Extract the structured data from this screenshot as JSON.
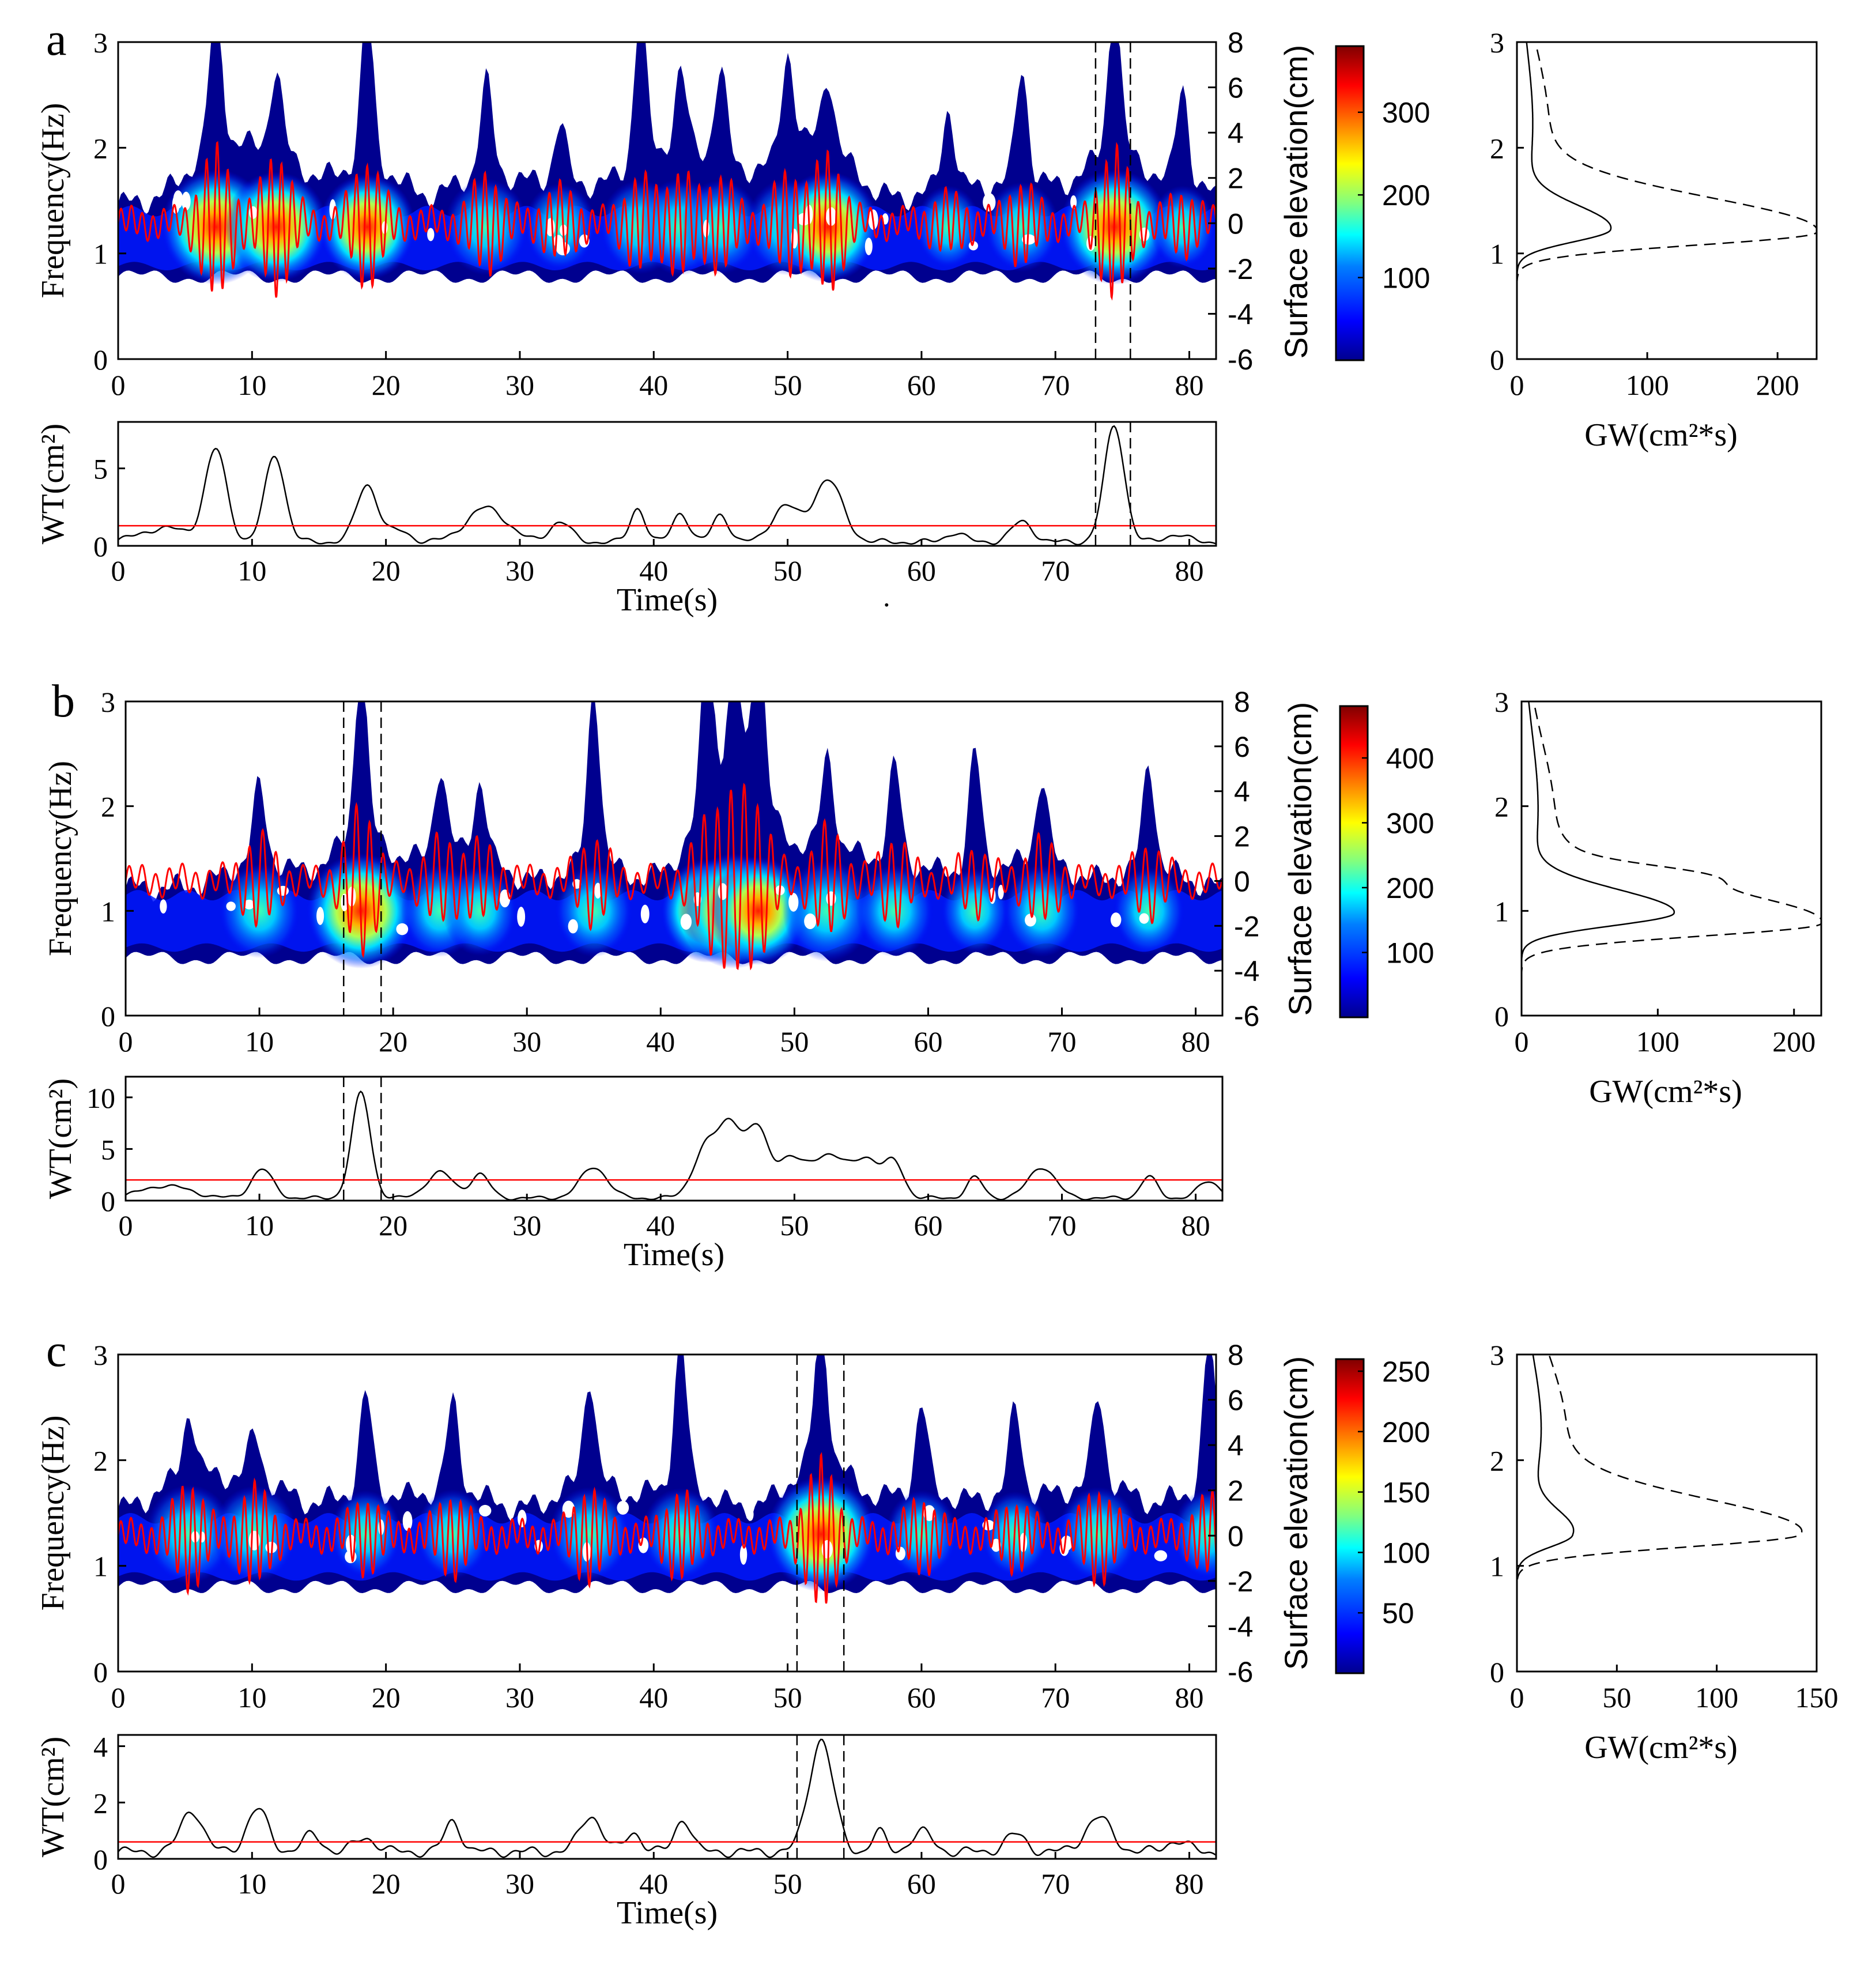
{
  "chart_data": [
    {
      "panel": "a",
      "type": "heatmap",
      "title": "a",
      "xlabel": "Time(s)",
      "ylabel": "Frequency(Hz)",
      "y2label": "Surface elevation(cm)",
      "xlim": [
        0,
        82
      ],
      "ylim": [
        0,
        3
      ],
      "y2lim": [
        -6,
        8
      ],
      "x_ticks": [
        0,
        10,
        20,
        30,
        40,
        50,
        60,
        70,
        80
      ],
      "y_ticks": [
        0,
        1,
        2,
        3
      ],
      "y2_ticks": [
        -6,
        -4,
        -2,
        0,
        2,
        4,
        6,
        8
      ],
      "colorbar_max": 380,
      "colorbar_ticks": [
        100,
        200,
        300
      ],
      "carrier_frequency": 1.25,
      "low_edge": 0.78,
      "groups": [
        {
          "t": 7.3,
          "amp": 1.0,
          "spike": 3.0
        },
        {
          "t": 11.8,
          "amp": 0.9,
          "spike": 2.3
        },
        {
          "t": 18.6,
          "amp": 0.8,
          "spike": 3.0
        },
        {
          "t": 27.5,
          "amp": 0.6,
          "spike": 2.4
        },
        {
          "t": 33.0,
          "amp": 0.4,
          "spike": 2.1
        },
        {
          "t": 39.0,
          "amp": 0.55,
          "spike": 3.0
        },
        {
          "t": 42.0,
          "amp": 0.6,
          "spike": 2.3
        },
        {
          "t": 45.0,
          "amp": 0.55,
          "spike": 2.4
        },
        {
          "t": 50.0,
          "amp": 0.6,
          "spike": 2.5
        },
        {
          "t": 53.0,
          "amp": 0.9,
          "spike": 2.2
        },
        {
          "t": 62.0,
          "amp": 0.3,
          "spike": 2.3
        },
        {
          "t": 67.5,
          "amp": 0.45,
          "spike": 2.6
        },
        {
          "t": 74.4,
          "amp": 1.0,
          "spike": 3.0
        },
        {
          "t": 79.5,
          "amp": 0.3,
          "spike": 2.5
        }
      ],
      "event_window": [
        73.0,
        75.6
      ],
      "wt": {
        "ylabel": "WT(cm²)",
        "xlabel": "Time(s)",
        "ylim": [
          0,
          8
        ],
        "y_ticks": [
          0,
          5
        ],
        "threshold": 1.3,
        "peaks": [
          {
            "t": 3.5,
            "v": 0.9,
            "w": 1.8
          },
          {
            "t": 7.3,
            "v": 5.9,
            "w": 0.8
          },
          {
            "t": 11.7,
            "v": 5.6,
            "w": 0.75
          },
          {
            "t": 18.6,
            "v": 3.7,
            "w": 0.8
          },
          {
            "t": 21.0,
            "v": 0.7,
            "w": 0.8
          },
          {
            "t": 27.5,
            "v": 2.2,
            "w": 1.5
          },
          {
            "t": 33.0,
            "v": 1.3,
            "w": 0.8
          },
          {
            "t": 38.8,
            "v": 2.2,
            "w": 0.55
          },
          {
            "t": 42.0,
            "v": 1.9,
            "w": 0.6
          },
          {
            "t": 45.0,
            "v": 1.8,
            "w": 0.6
          },
          {
            "t": 49.8,
            "v": 2.3,
            "w": 1.0
          },
          {
            "t": 53.0,
            "v": 4.0,
            "w": 1.1
          },
          {
            "t": 62.5,
            "v": 0.6,
            "w": 0.7
          },
          {
            "t": 67.5,
            "v": 1.3,
            "w": 0.8
          },
          {
            "t": 74.4,
            "v": 7.5,
            "w": 0.75
          },
          {
            "t": 79.0,
            "v": 0.5,
            "w": 0.8
          }
        ]
      },
      "spectrum": {
        "type": "line",
        "xlabel": "GW(cm²*s)",
        "xlim": [
          0,
          230
        ],
        "x_ticks": [
          0,
          100,
          200
        ],
        "ylim": [
          0,
          3
        ],
        "y_ticks": [
          0,
          1,
          2,
          3
        ],
        "solid": {
          "peak_f": 1.23,
          "peak_v": 72
        },
        "dashed": {
          "peak_f": 1.2,
          "peak_v": 230
        },
        "secondary": null
      }
    },
    {
      "panel": "b",
      "type": "heatmap",
      "title": "b",
      "xlabel": "Time(s)",
      "ylabel": "Frequency(Hz)",
      "y2label": "Surface elevation(cm)",
      "xlim": [
        0,
        82
      ],
      "ylim": [
        0,
        3
      ],
      "y2lim": [
        -6,
        8
      ],
      "x_ticks": [
        0,
        10,
        20,
        30,
        40,
        50,
        60,
        70,
        80
      ],
      "y_ticks": [
        0,
        1,
        2,
        3
      ],
      "y2_ticks": [
        -6,
        -4,
        -2,
        0,
        2,
        4,
        6,
        8
      ],
      "colorbar_max": 480,
      "colorbar_ticks": [
        100,
        200,
        300,
        400
      ],
      "carrier_frequency": 1.0,
      "low_edge": 0.55,
      "groups": [
        {
          "t": 10.0,
          "amp": 0.55,
          "spike": 2.0
        },
        {
          "t": 17.6,
          "amp": 1.0,
          "spike": 3.0
        },
        {
          "t": 23.5,
          "amp": 0.5,
          "spike": 2.1
        },
        {
          "t": 26.5,
          "amp": 0.45,
          "spike": 2.0
        },
        {
          "t": 35.0,
          "amp": 0.5,
          "spike": 3.0
        },
        {
          "t": 43.5,
          "amp": 0.75,
          "spike": 3.0
        },
        {
          "t": 45.5,
          "amp": 1.0,
          "spike": 2.7
        },
        {
          "t": 47.3,
          "amp": 0.85,
          "spike": 3.0
        },
        {
          "t": 52.5,
          "amp": 0.7,
          "spike": 2.2
        },
        {
          "t": 57.5,
          "amp": 0.5,
          "spike": 2.2
        },
        {
          "t": 63.5,
          "amp": 0.35,
          "spike": 2.4
        },
        {
          "t": 68.5,
          "amp": 0.5,
          "spike": 2.1
        },
        {
          "t": 76.5,
          "amp": 0.4,
          "spike": 2.3
        }
      ],
      "event_window": [
        16.3,
        19.1
      ],
      "wt": {
        "ylabel": "WT(cm²)",
        "xlabel": "Time(s)",
        "ylim": [
          0,
          12
        ],
        "y_ticks": [
          0,
          5,
          10
        ],
        "threshold": 2.0,
        "peaks": [
          {
            "t": 3.0,
            "v": 1.2,
            "w": 1.8
          },
          {
            "t": 10.2,
            "v": 2.8,
            "w": 0.8
          },
          {
            "t": 17.6,
            "v": 10.2,
            "w": 0.7
          },
          {
            "t": 23.5,
            "v": 2.5,
            "w": 1.0
          },
          {
            "t": 26.5,
            "v": 2.3,
            "w": 0.7
          },
          {
            "t": 35.0,
            "v": 3.0,
            "w": 1.0
          },
          {
            "t": 43.5,
            "v": 5.2,
            "w": 1.0
          },
          {
            "t": 45.3,
            "v": 6.3,
            "w": 0.8
          },
          {
            "t": 47.2,
            "v": 6.5,
            "w": 0.8
          },
          {
            "t": 49.5,
            "v": 3.5,
            "w": 1.0
          },
          {
            "t": 52.5,
            "v": 4.2,
            "w": 1.4
          },
          {
            "t": 55.5,
            "v": 3.5,
            "w": 1.0
          },
          {
            "t": 57.5,
            "v": 3.2,
            "w": 0.7
          },
          {
            "t": 63.5,
            "v": 2.0,
            "w": 0.6
          },
          {
            "t": 68.5,
            "v": 3.0,
            "w": 1.0
          },
          {
            "t": 76.5,
            "v": 2.1,
            "w": 0.6
          },
          {
            "t": 81.0,
            "v": 1.6,
            "w": 0.8
          }
        ]
      },
      "spectrum": {
        "type": "line",
        "xlabel": "GW(cm²*s)",
        "xlim": [
          0,
          220
        ],
        "x_ticks": [
          0,
          100,
          200
        ],
        "ylim": [
          0,
          3
        ],
        "y_ticks": [
          0,
          1,
          2,
          3
        ],
        "solid": {
          "peak_f": 0.98,
          "peak_v": 112
        },
        "dashed": {
          "peak_f": 0.88,
          "peak_v": 220
        },
        "secondary": {
          "f": 1.35,
          "v": 130,
          "w": 0.09
        }
      }
    },
    {
      "panel": "c",
      "type": "heatmap",
      "title": "c",
      "xlabel": "Time(s)",
      "ylabel": "Frequency(Hz)",
      "y2label": "Surface elevation(cm)",
      "xlim": [
        0,
        82
      ],
      "ylim": [
        0,
        3
      ],
      "y2lim": [
        -6,
        8
      ],
      "x_ticks": [
        0,
        10,
        20,
        30,
        40,
        50,
        60,
        70,
        80
      ],
      "y_ticks": [
        0,
        1,
        2,
        3
      ],
      "y2_ticks": [
        -6,
        -4,
        -2,
        0,
        2,
        4,
        6,
        8
      ],
      "colorbar_max": 260,
      "colorbar_ticks": [
        50,
        100,
        150,
        200,
        250
      ],
      "carrier_frequency": 1.3,
      "low_edge": 0.8,
      "groups": [
        {
          "t": 5.3,
          "amp": 0.65,
          "spike": 2.2
        },
        {
          "t": 10.2,
          "amp": 0.6,
          "spike": 2.0
        },
        {
          "t": 18.5,
          "amp": 0.4,
          "spike": 2.5
        },
        {
          "t": 25.0,
          "amp": 0.45,
          "spike": 2.4
        },
        {
          "t": 35.2,
          "amp": 0.55,
          "spike": 2.6
        },
        {
          "t": 42.0,
          "amp": 0.5,
          "spike": 3.0
        },
        {
          "t": 52.5,
          "amp": 1.0,
          "spike": 3.0
        },
        {
          "t": 60.0,
          "amp": 0.4,
          "spike": 2.4
        },
        {
          "t": 67.0,
          "amp": 0.35,
          "spike": 2.4
        },
        {
          "t": 73.2,
          "amp": 0.55,
          "spike": 2.4
        },
        {
          "t": 81.5,
          "amp": 0.45,
          "spike": 3.0
        }
      ],
      "event_window": [
        50.7,
        54.2
      ],
      "wt": {
        "ylabel": "WT(cm²)",
        "xlabel": "Time(s)",
        "ylim": [
          0,
          4.4
        ],
        "y_ticks": [
          0,
          2,
          4
        ],
        "threshold": 0.6,
        "peaks": [
          {
            "t": 5.5,
            "v": 1.5,
            "w": 0.8
          },
          {
            "t": 10.4,
            "v": 1.5,
            "w": 0.8
          },
          {
            "t": 14.5,
            "v": 0.6,
            "w": 0.7
          },
          {
            "t": 18.5,
            "v": 0.5,
            "w": 0.8
          },
          {
            "t": 25.0,
            "v": 1.1,
            "w": 0.6
          },
          {
            "t": 35.3,
            "v": 1.3,
            "w": 0.8
          },
          {
            "t": 38.5,
            "v": 0.7,
            "w": 0.6
          },
          {
            "t": 42.2,
            "v": 1.2,
            "w": 0.6
          },
          {
            "t": 52.5,
            "v": 4.0,
            "w": 0.9
          },
          {
            "t": 56.8,
            "v": 0.7,
            "w": 0.5
          },
          {
            "t": 60.0,
            "v": 0.7,
            "w": 0.8
          },
          {
            "t": 67.0,
            "v": 0.6,
            "w": 0.8
          },
          {
            "t": 73.2,
            "v": 1.2,
            "w": 1.0
          },
          {
            "t": 79.0,
            "v": 0.4,
            "w": 0.8
          }
        ]
      },
      "spectrum": {
        "type": "line",
        "xlabel": "GW(cm²*s)",
        "xlim": [
          0,
          150
        ],
        "x_ticks": [
          0,
          50,
          100,
          150
        ],
        "ylim": [
          0,
          3
        ],
        "y_ticks": [
          0,
          1,
          2,
          3
        ],
        "solid": {
          "peak_f": 1.3,
          "peak_v": 28
        },
        "dashed": {
          "peak_f": 1.3,
          "peak_v": 142
        },
        "secondary": null
      }
    }
  ],
  "stray_mark": "·",
  "colors": {
    "signal_line": "#ff0000",
    "threshold_line": "#ff0000",
    "wt_line": "#000000",
    "spectrum_line": "#000000",
    "colormap": [
      "#00008f",
      "#0000ff",
      "#0080ff",
      "#00ffff",
      "#80ff80",
      "#ffff00",
      "#ff8000",
      "#ff0000",
      "#800000"
    ]
  }
}
